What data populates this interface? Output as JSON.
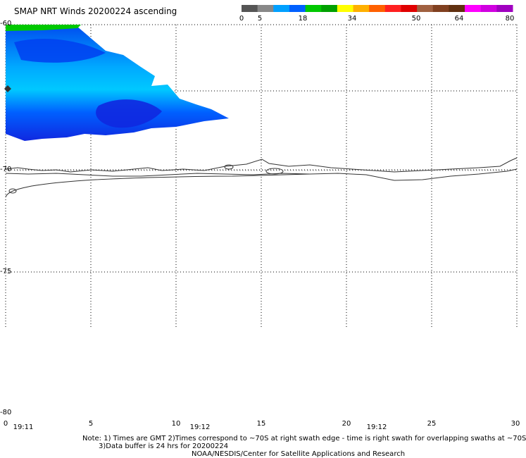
{
  "title": "SMAP NRT Winds 20200224 ascending",
  "colorbar": {
    "ticks": [
      "0",
      "5",
      "18",
      "34",
      "50",
      "64",
      "80"
    ],
    "colors": [
      "#555555",
      "#888888",
      "#00a0ff",
      "#0060ff",
      "#00c800",
      "#00a000",
      "#ffff00",
      "#ffb000",
      "#ff6000",
      "#ff2020",
      "#e00000",
      "#a06040",
      "#804020",
      "#603010",
      "#ff00ff",
      "#d000e0",
      "#a000c0"
    ]
  },
  "map": {
    "lat_labels": [
      "-60",
      "-70",
      "-75",
      "-80"
    ],
    "lon_labels": [
      "0",
      "5",
      "10",
      "15",
      "20",
      "25",
      "30"
    ],
    "time_labels": [
      "19:11",
      "19:12",
      "19:12"
    ],
    "swath_colors": {
      "high": "#00c800",
      "medium": "#00c8ff",
      "low": "#0044ee",
      "deep": "#1010e0"
    }
  },
  "notes": {
    "line1": "Note: 1) Times are GMT 2)Times correspond to ~70S at right swath edge - time is right swath for overlapping swaths at ~70S",
    "line2": "3)Data buffer is 24 hrs for 20200224",
    "line3": "NOAA/NESDIS/Center for Satellite Applications and Research"
  }
}
